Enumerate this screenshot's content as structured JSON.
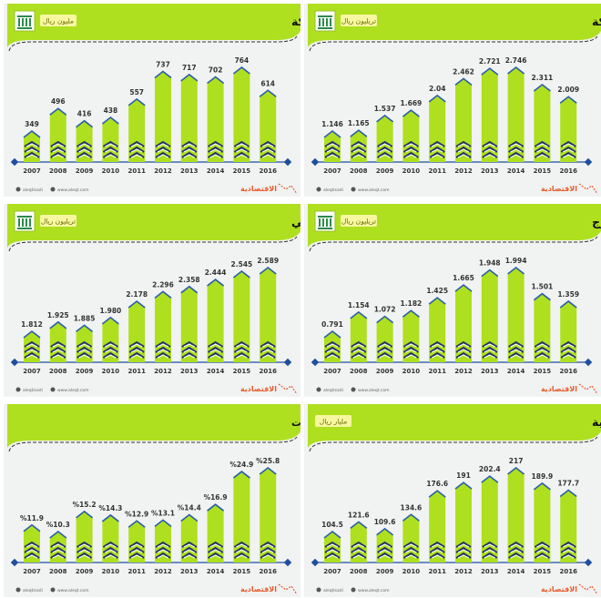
{
  "colors": {
    "accent": "#aee01f",
    "bar": "#aee01f",
    "bar_top": "#2b5fa8",
    "chevron_dark": "#23306a",
    "chevron_light": "#ffffff",
    "axis": "#1f4f9c",
    "brand": "#e85a2a",
    "bg": "#f1f2f2"
  },
  "footer": {
    "twitter": "aleqtisadi",
    "web": "www.aleqt.com",
    "brand": "الاقتصادية"
  },
  "chart_data": [
    {
      "type": "bar",
      "title": "تطور إجمالي الأصول الاحتياطيه للملكة",
      "unit": "تريليون ريال",
      "has_icon": true,
      "categories": [
        "2007",
        "2008",
        "2009",
        "2010",
        "2011",
        "2012",
        "2013",
        "2014",
        "2015",
        "2016"
      ],
      "values": [
        1.146,
        1.165,
        1.537,
        1.669,
        2.04,
        2.462,
        2.721,
        2.746,
        2.311,
        2.009
      ],
      "labels": [
        "1.146",
        "1.165",
        "1.537",
        "1.669",
        "2.04",
        "2.462",
        "2.721",
        "2.746",
        "2.311",
        "2.009"
      ]
    },
    {
      "type": "bar",
      "title": "تطور الاحتياطي الأجنبي للمملكة",
      "unit": "مليون ريال",
      "has_icon": true,
      "categories": [
        "2007",
        "2008",
        "2009",
        "2010",
        "2011",
        "2012",
        "2013",
        "2014",
        "2015",
        "2016"
      ],
      "values": [
        349,
        496,
        416,
        438,
        557,
        737,
        717,
        702,
        764,
        614
      ],
      "labels": [
        "349",
        "496",
        "416",
        "438",
        "557",
        "737",
        "717",
        "702",
        "764",
        "614"
      ]
    },
    {
      "type": "bar",
      "title": "تطور استثمارات المملكة بالخارج",
      "unit": "تريليون ريال",
      "has_icon": true,
      "categories": [
        "2007",
        "2008",
        "2009",
        "2010",
        "2011",
        "2012",
        "2013",
        "2014",
        "2015",
        "2016"
      ],
      "values": [
        0.791,
        1.154,
        1.072,
        1.182,
        1.425,
        1.665,
        1.948,
        1.994,
        1.501,
        1.359
      ],
      "labels": [
        "0.791",
        "1.154",
        "1.072",
        "1.182",
        "1.425",
        "1.665",
        "1.948",
        "1.994",
        "1.501",
        "1.359"
      ]
    },
    {
      "type": "bar",
      "title": "تطور الناتج المحلي الإجمالي",
      "unit": "تريليون ريال",
      "has_icon": true,
      "categories": [
        "2007",
        "2008",
        "2009",
        "2010",
        "2011",
        "2012",
        "2013",
        "2014",
        "2015",
        "2016"
      ],
      "values": [
        1.812,
        1.925,
        1.885,
        1.98,
        2.178,
        2.296,
        2.358,
        2.444,
        2.545,
        2.589
      ],
      "labels": [
        "1.812",
        "1.925",
        "1.885",
        "1.980",
        "2.178",
        "2.296",
        "2.358",
        "2.444",
        "2.545",
        "2.589"
      ]
    },
    {
      "type": "bar",
      "title": "تطور الصادرات غير النفطية",
      "unit": "مليار ريال",
      "has_icon": false,
      "categories": [
        "2007",
        "2008",
        "2009",
        "2010",
        "2011",
        "2012",
        "2013",
        "2014",
        "2015",
        "2016"
      ],
      "values": [
        104.5,
        121.6,
        109.6,
        134.6,
        176.6,
        191,
        202.4,
        217,
        189.9,
        177.7
      ],
      "labels": [
        "104.5",
        "121.6",
        "109.6",
        "134.6",
        "176.6",
        "191",
        "202.4",
        "217",
        "189.9",
        "177.7"
      ]
    },
    {
      "type": "bar",
      "title": "نسبة الصادرات غير النفطية من إجمالي الصادرات",
      "unit": "",
      "has_icon": false,
      "categories": [
        "2007",
        "2008",
        "2009",
        "2010",
        "2011",
        "2012",
        "2013",
        "2014",
        "2015",
        "2016"
      ],
      "values": [
        11.9,
        10.3,
        15.2,
        14.3,
        12.9,
        13.1,
        14.4,
        16.9,
        24.9,
        25.8
      ],
      "labels": [
        "%11.9",
        "%10.3",
        "%15.2",
        "%14.3",
        "%12.9",
        "%13.1",
        "%14.4",
        "%16.9",
        "%24.9",
        "%25.8"
      ]
    }
  ]
}
